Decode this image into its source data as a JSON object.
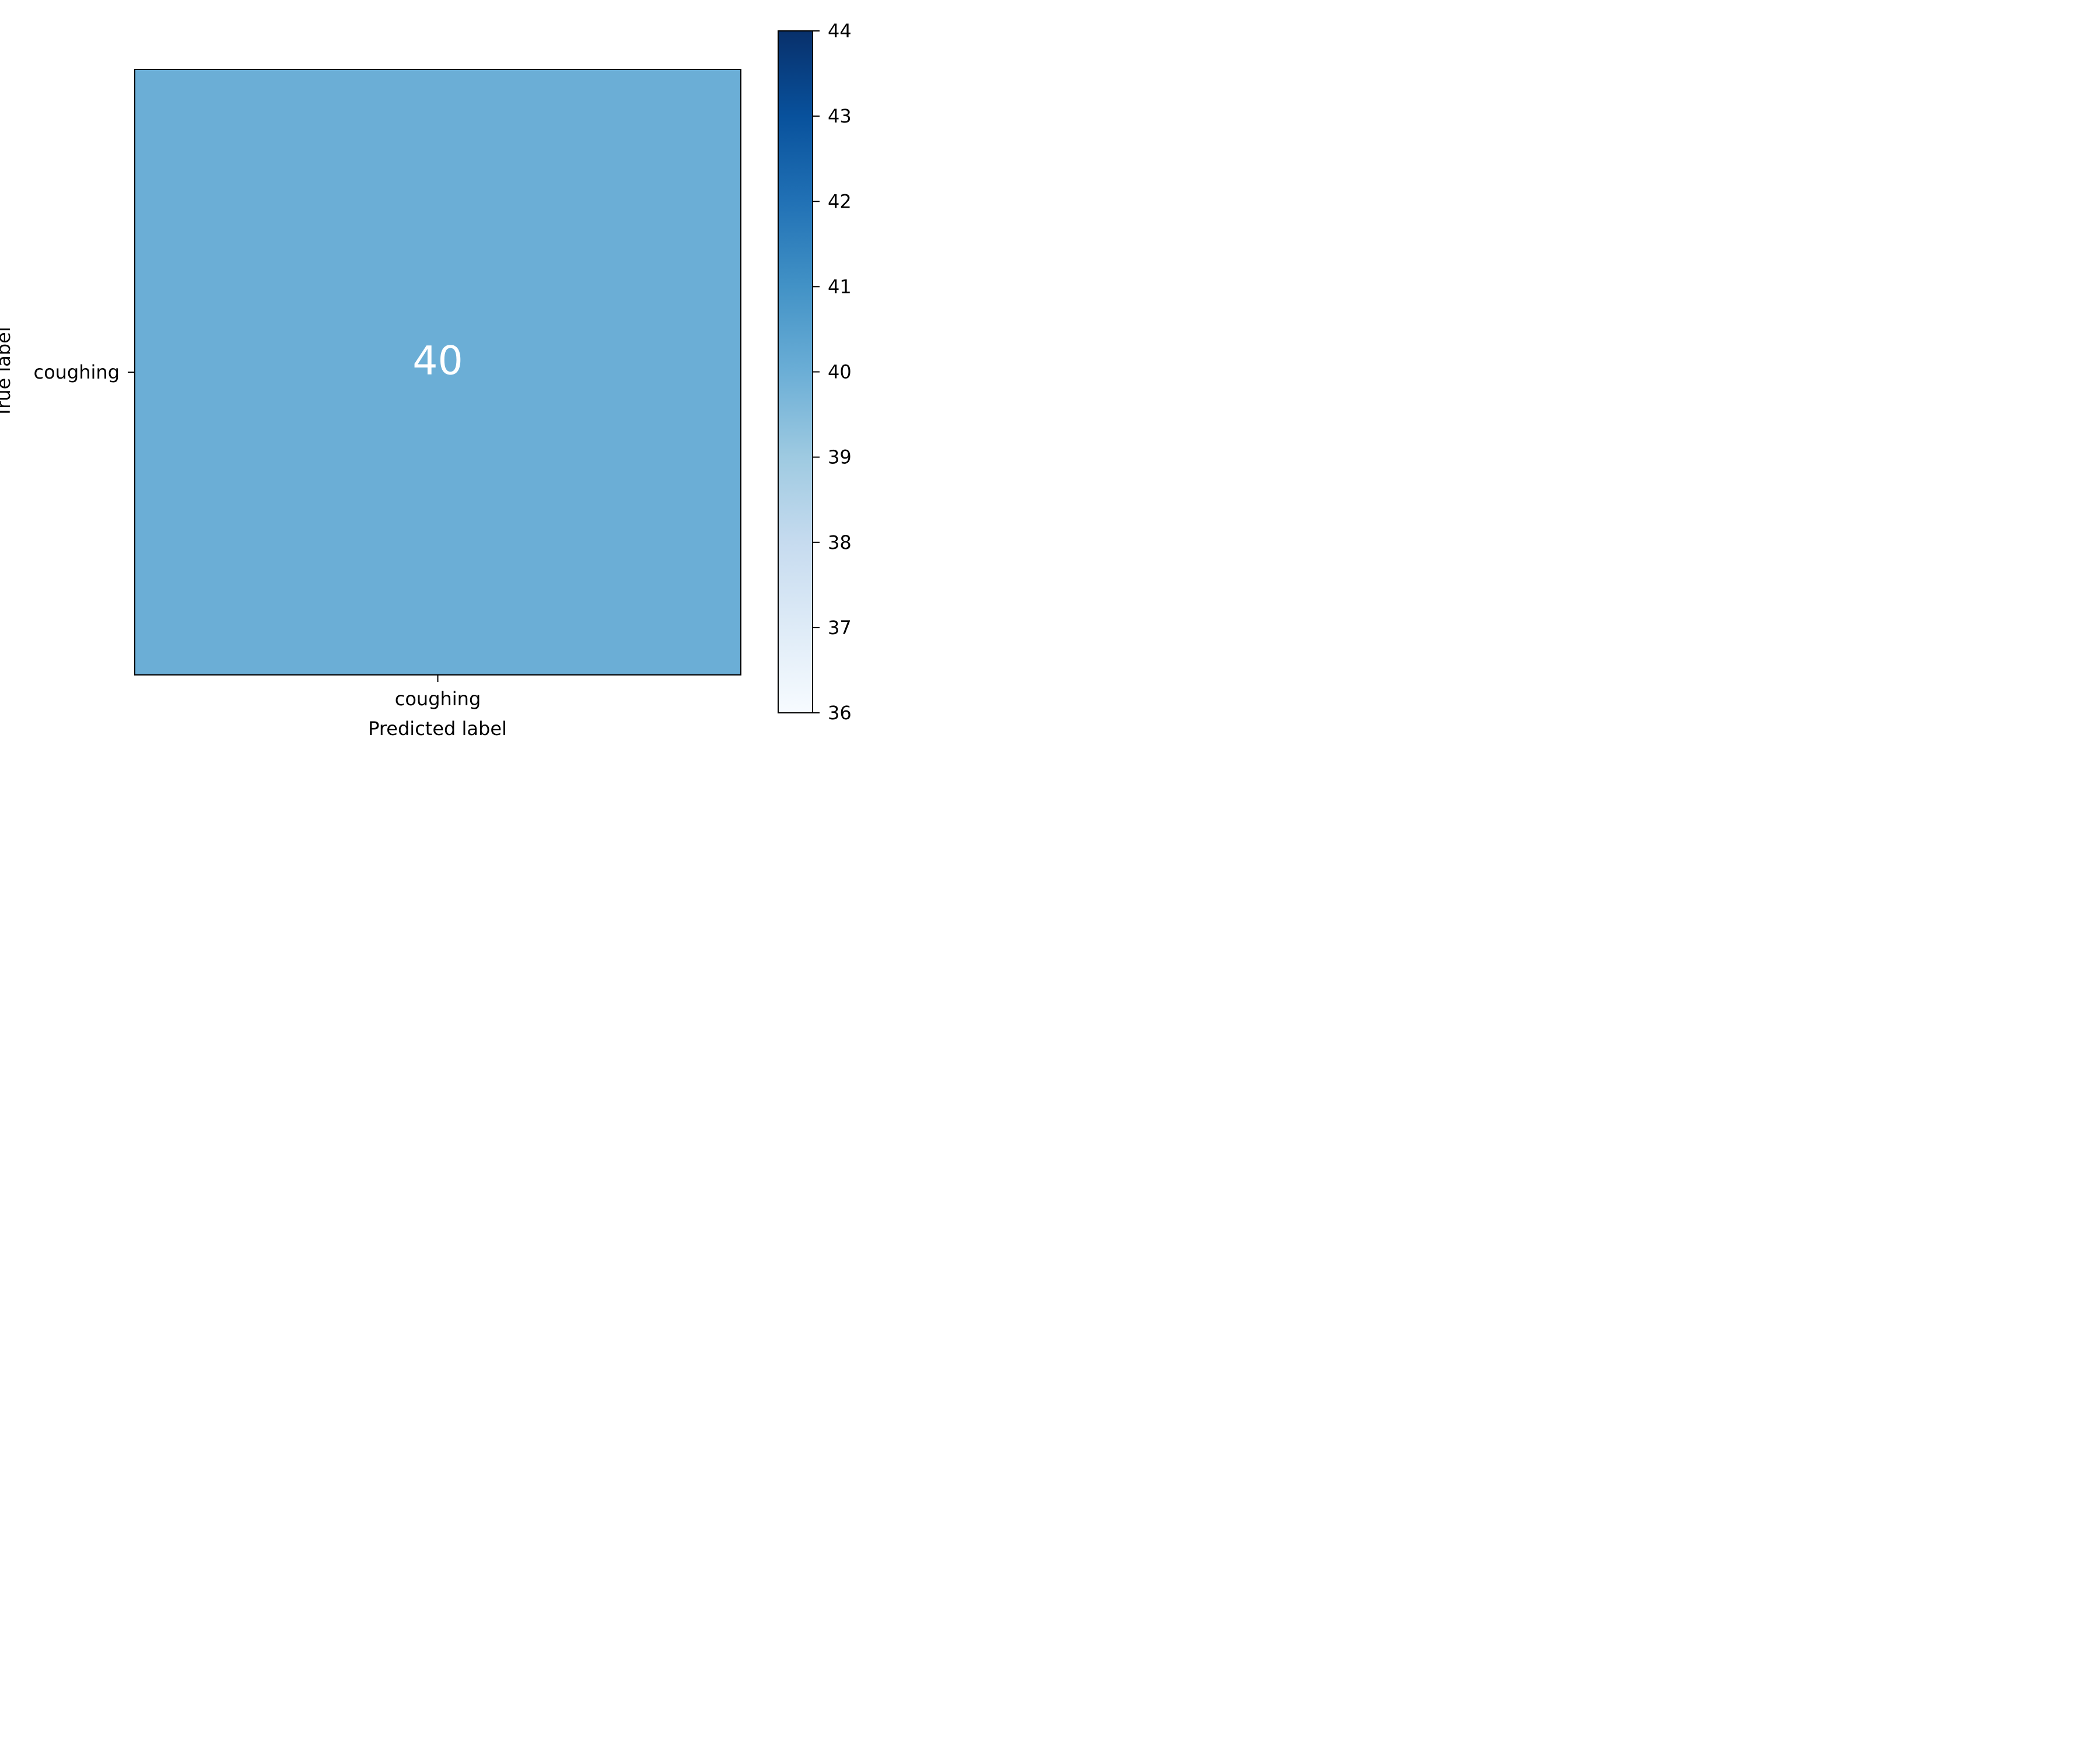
{
  "chart_data": {
    "type": "heatmap",
    "title": "",
    "xlabel": "Predicted label",
    "ylabel": "True label",
    "x_categories": [
      "coughing"
    ],
    "y_categories": [
      "coughing"
    ],
    "values": [
      [
        40
      ]
    ],
    "cell_labels": [
      [
        "40"
      ]
    ],
    "colormap": "Blues",
    "colorbar": {
      "min": 36,
      "max": 44,
      "ticks": [
        36,
        37,
        38,
        39,
        40,
        41,
        42,
        43,
        44
      ]
    },
    "cell_text_color": "#ffffff",
    "grid": false
  }
}
